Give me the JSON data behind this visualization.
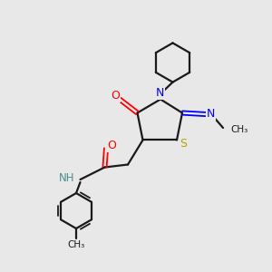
{
  "bg_color": "#e8e8e8",
  "bond_color": "#1a1a1a",
  "N_color": "#0000ff",
  "O_color": "#ff0000",
  "S_color": "#b8a000",
  "H_color": "#4a9090",
  "figsize": [
    3.0,
    3.0
  ],
  "dpi": 100,
  "xlim": [
    0,
    10
  ],
  "ylim": [
    0,
    10
  ]
}
